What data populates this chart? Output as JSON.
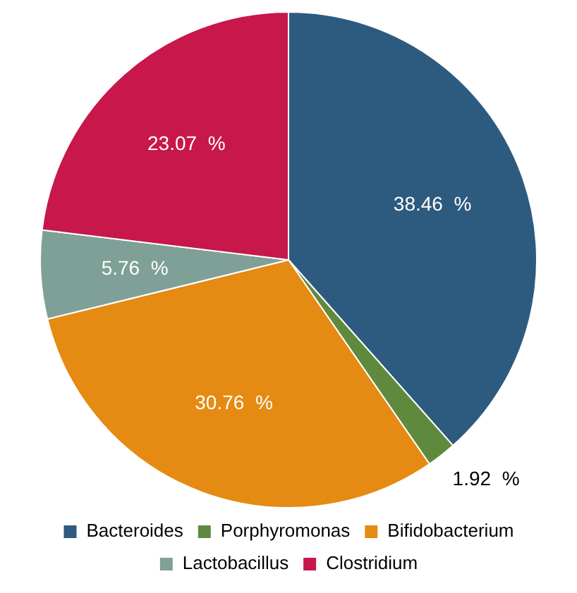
{
  "chart_data": {
    "type": "pie",
    "categories": [
      "Bacteroides",
      "Porphyromonas",
      "Bifidobacterium",
      "Lactobacillus",
      "Clostridium"
    ],
    "values": [
      38.46,
      1.92,
      30.76,
      5.76,
      23.07
    ],
    "colors": [
      "#2d5a7f",
      "#5f8a3e",
      "#e58a12",
      "#7fa097",
      "#c8174a"
    ],
    "value_labels": [
      "38.46  %",
      "1.92  %",
      "30.76  %",
      "5.76  %",
      "23.07  %"
    ],
    "legend": "bottom"
  }
}
